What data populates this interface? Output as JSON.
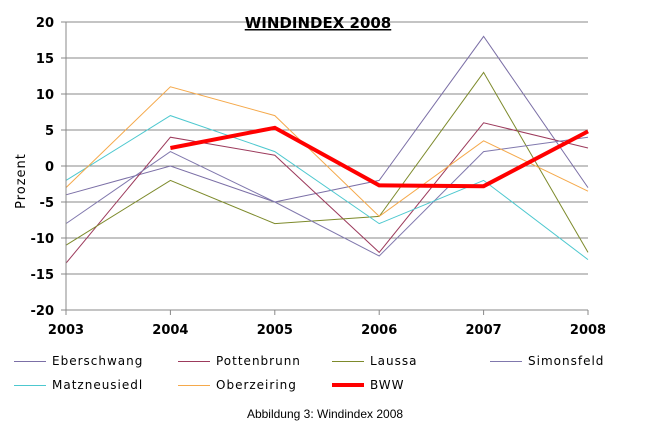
{
  "caption": "Abbildung 3: Windindex 2008",
  "chart_data": {
    "type": "line",
    "title": "WINDINDEX 2008",
    "xlabel": "",
    "ylabel": "Prozent",
    "x": [
      "2003",
      "2004",
      "2005",
      "2006",
      "2007",
      "2008"
    ],
    "ylim": [
      -20,
      20
    ],
    "yticks": [
      -20,
      -15,
      -10,
      -5,
      0,
      5,
      10,
      15,
      20
    ],
    "grid": true,
    "legend_position": "bottom",
    "series": [
      {
        "name": "Eberschwang",
        "color": "#7b6fa6",
        "width": 1,
        "values": [
          -4,
          0,
          -5,
          -2,
          18,
          -3
        ]
      },
      {
        "name": "Pottenbrunn",
        "color": "#9c3a5c",
        "width": 1,
        "values": [
          -13.5,
          4,
          1.5,
          -12,
          6,
          2.5
        ]
      },
      {
        "name": "Laussa",
        "color": "#7d8a2b",
        "width": 1,
        "values": [
          -11,
          -2,
          -8,
          -7,
          13,
          -12
        ]
      },
      {
        "name": "Simonsfeld",
        "color": "#8078ad",
        "width": 1,
        "values": [
          -8,
          2,
          -5,
          -12.5,
          2,
          4
        ]
      },
      {
        "name": "Matzneusiedl",
        "color": "#4dc8cf",
        "width": 1,
        "values": [
          -2,
          7,
          2,
          -8,
          -2,
          -13
        ]
      },
      {
        "name": "Oberzeiring",
        "color": "#f5a94b",
        "width": 1,
        "values": [
          -3,
          11,
          7,
          -7,
          3.5,
          -3.5
        ]
      },
      {
        "name": "BWW",
        "color": "#ff0000",
        "width": 4,
        "values": [
          null,
          2.5,
          5.3,
          -2.7,
          -2.8,
          4.8
        ]
      }
    ]
  }
}
